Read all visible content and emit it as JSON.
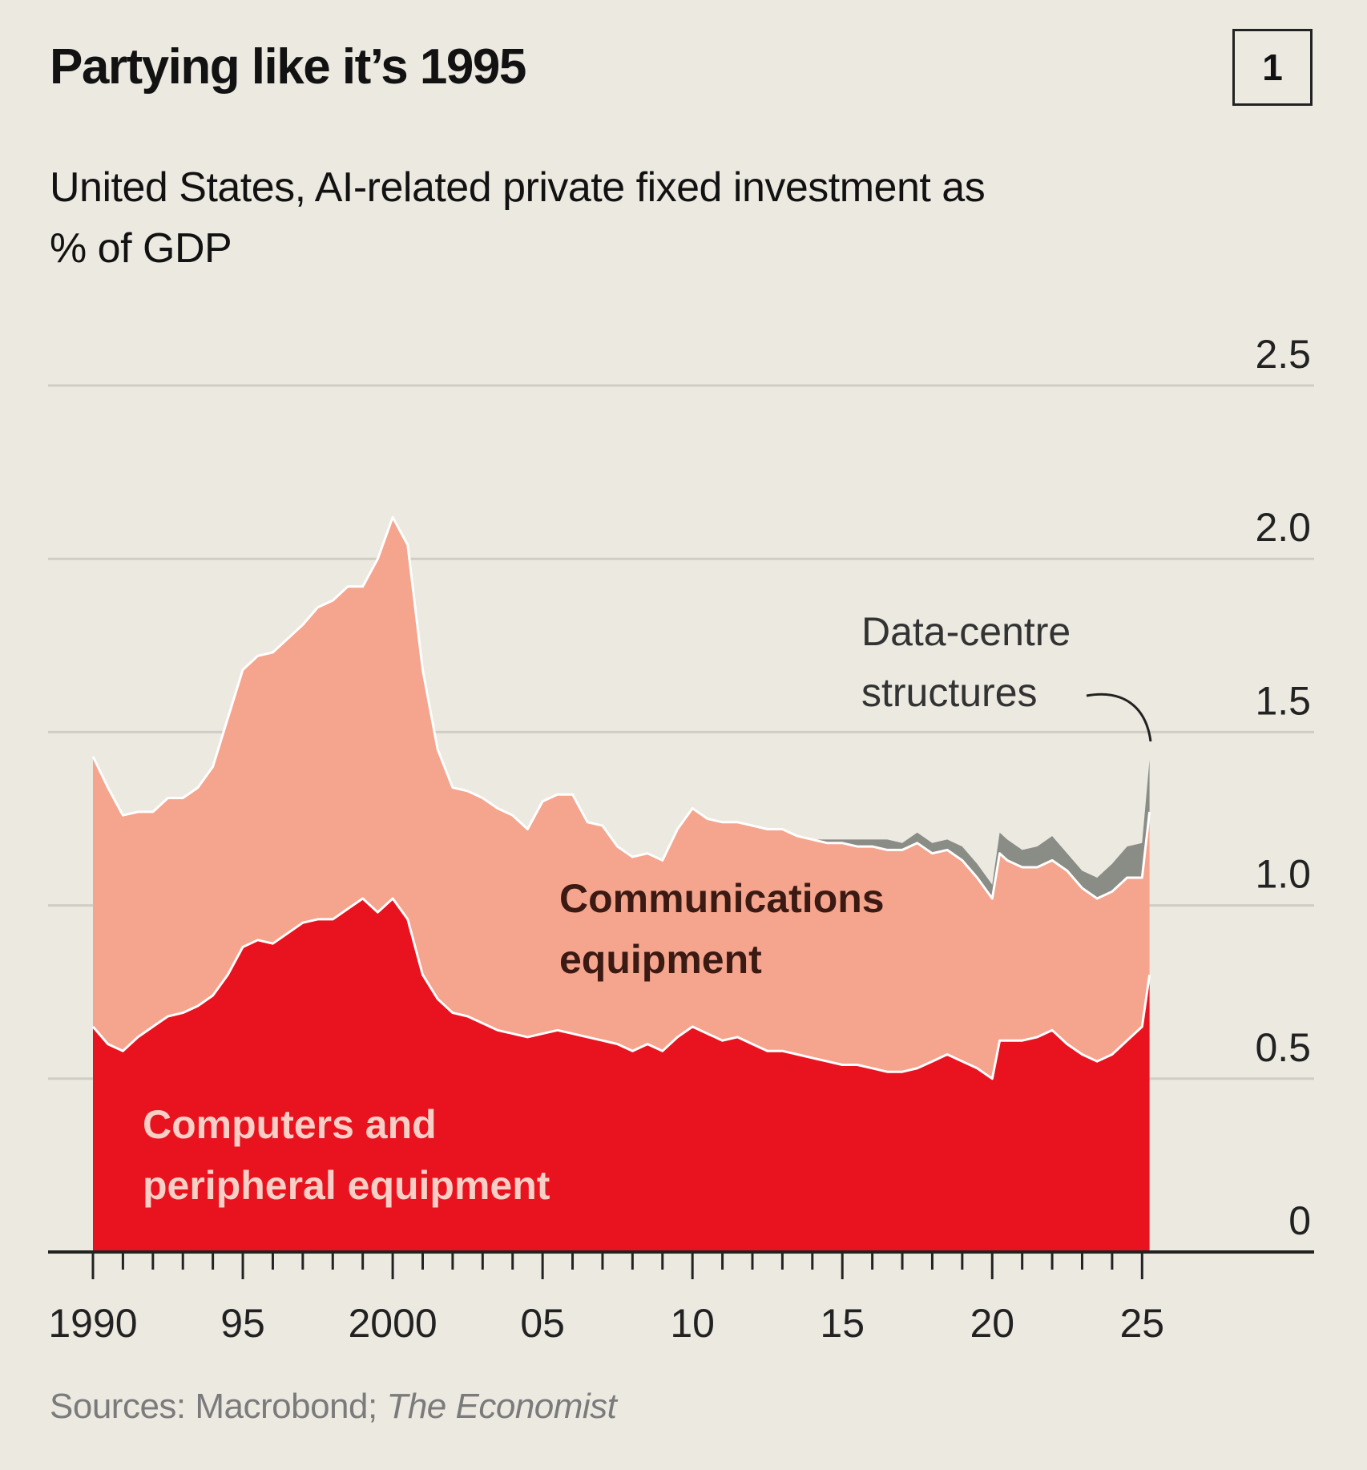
{
  "header": {
    "title": "Partying like it’s 1995",
    "badge": "1",
    "subtitle": "United States, AI-related private fixed investment as % of GDP"
  },
  "footer": {
    "source_prefix": "Sources: Macrobond; ",
    "source_italic": "The Economist"
  },
  "colors": {
    "background": "#ebe9e0",
    "computers": "#e8131f",
    "communications": "#f5a48e",
    "datacentre": "#8a8c86",
    "gridline": "#cfcdc4",
    "axis": "#222222"
  },
  "chart_data": {
    "type": "area",
    "stacked": true,
    "y_axis": {
      "min": 0,
      "max": 2.5,
      "ticks": [
        0,
        0.5,
        1.0,
        1.5,
        2.0,
        2.5
      ],
      "tick_labels": [
        "0",
        "0.5",
        "1.0",
        "1.5",
        "2.0",
        "2.5"
      ],
      "side": "right"
    },
    "x_axis": {
      "min": 1990,
      "max": 2025.5,
      "major_ticks": [
        1990,
        1995,
        2000,
        2005,
        2010,
        2015,
        2020,
        2025
      ],
      "tick_labels": [
        "1990",
        "95",
        "2000",
        "05",
        "10",
        "15",
        "20",
        "25"
      ]
    },
    "grid": true,
    "x": [
      1990,
      1990.5,
      1991,
      1991.5,
      1992,
      1992.5,
      1993,
      1993.5,
      1994,
      1994.5,
      1995,
      1995.5,
      1996,
      1996.5,
      1997,
      1997.5,
      1998,
      1998.5,
      1999,
      1999.5,
      2000,
      2000.5,
      2001,
      2001.5,
      2002,
      2002.5,
      2003,
      2003.5,
      2004,
      2004.5,
      2005,
      2005.5,
      2006,
      2006.5,
      2007,
      2007.5,
      2008,
      2008.5,
      2009,
      2009.5,
      2010,
      2010.5,
      2011,
      2011.5,
      2012,
      2012.5,
      2013,
      2013.5,
      2014,
      2014.5,
      2015,
      2015.5,
      2016,
      2016.5,
      2017,
      2017.5,
      2018,
      2018.5,
      2019,
      2019.5,
      2020,
      2020.25,
      2020.5,
      2021,
      2021.5,
      2022,
      2022.5,
      2023,
      2023.5,
      2024,
      2024.5,
      2025,
      2025.25
    ],
    "series": [
      {
        "name": "Computers and peripheral equipment",
        "values": [
          0.65,
          0.6,
          0.58,
          0.62,
          0.65,
          0.68,
          0.69,
          0.71,
          0.74,
          0.8,
          0.88,
          0.9,
          0.89,
          0.92,
          0.95,
          0.96,
          0.96,
          0.99,
          1.02,
          0.98,
          1.02,
          0.96,
          0.8,
          0.73,
          0.69,
          0.68,
          0.66,
          0.64,
          0.63,
          0.62,
          0.63,
          0.64,
          0.63,
          0.62,
          0.61,
          0.6,
          0.58,
          0.6,
          0.58,
          0.62,
          0.65,
          0.63,
          0.61,
          0.62,
          0.6,
          0.58,
          0.58,
          0.57,
          0.56,
          0.55,
          0.54,
          0.54,
          0.53,
          0.52,
          0.52,
          0.53,
          0.55,
          0.57,
          0.55,
          0.53,
          0.5,
          0.61,
          0.61,
          0.61,
          0.62,
          0.64,
          0.6,
          0.57,
          0.55,
          0.57,
          0.61,
          0.65,
          0.8
        ]
      },
      {
        "name": "Communications equipment",
        "values": [
          0.78,
          0.74,
          0.68,
          0.65,
          0.62,
          0.63,
          0.62,
          0.63,
          0.66,
          0.74,
          0.8,
          0.82,
          0.84,
          0.85,
          0.86,
          0.9,
          0.92,
          0.93,
          0.9,
          1.02,
          1.1,
          1.08,
          0.88,
          0.72,
          0.65,
          0.65,
          0.65,
          0.64,
          0.63,
          0.6,
          0.67,
          0.68,
          0.69,
          0.62,
          0.62,
          0.57,
          0.56,
          0.55,
          0.55,
          0.6,
          0.63,
          0.62,
          0.63,
          0.62,
          0.63,
          0.64,
          0.64,
          0.63,
          0.63,
          0.63,
          0.64,
          0.63,
          0.64,
          0.64,
          0.64,
          0.65,
          0.6,
          0.59,
          0.58,
          0.55,
          0.52,
          0.54,
          0.52,
          0.5,
          0.49,
          0.49,
          0.5,
          0.48,
          0.47,
          0.47,
          0.47,
          0.43,
          0.47
        ]
      },
      {
        "name": "Data-centre structures",
        "values": [
          0.0,
          0.0,
          0.0,
          0.0,
          0.0,
          0.0,
          0.0,
          0.0,
          0.0,
          0.0,
          0.0,
          0.0,
          0.0,
          0.0,
          0.0,
          0.0,
          0.0,
          0.0,
          0.0,
          0.0,
          0.0,
          0.0,
          0.0,
          0.0,
          0.0,
          0.0,
          0.0,
          0.0,
          0.0,
          0.0,
          0.0,
          0.0,
          0.0,
          0.0,
          0.0,
          0.0,
          0.0,
          0.0,
          0.0,
          0.0,
          0.0,
          0.0,
          0.0,
          0.0,
          0.0,
          0.0,
          0.0,
          0.0,
          0.0,
          0.01,
          0.01,
          0.02,
          0.02,
          0.03,
          0.02,
          0.03,
          0.03,
          0.03,
          0.04,
          0.04,
          0.04,
          0.06,
          0.06,
          0.05,
          0.06,
          0.07,
          0.05,
          0.05,
          0.06,
          0.08,
          0.09,
          0.1,
          0.15
        ]
      }
    ],
    "labels": {
      "computers": [
        "Computers and",
        "peripheral equipment"
      ],
      "communications": [
        "Communications",
        "equipment"
      ],
      "datacentre": [
        "Data-centre",
        "structures"
      ]
    }
  }
}
